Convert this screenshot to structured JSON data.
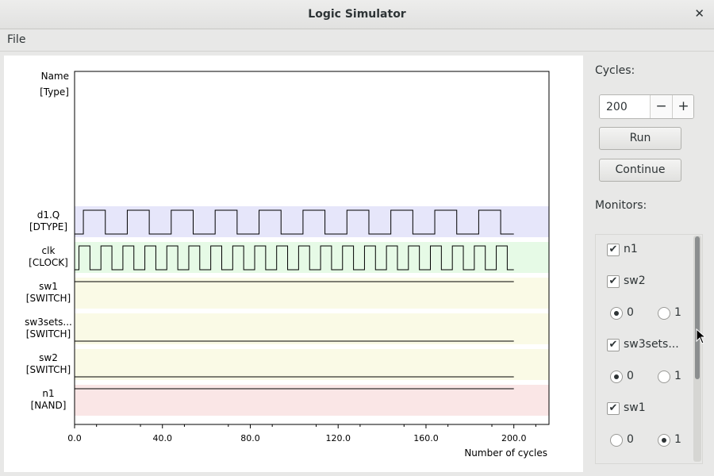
{
  "window": {
    "title": "Logic Simulator"
  },
  "menu": {
    "file_label": "File"
  },
  "sidebar": {
    "cycles_label": "Cycles:",
    "cycles_value": "200",
    "run_label": "Run",
    "continue_label": "Continue",
    "monitors_label": "Monitors:",
    "monitors": [
      {
        "name": "n1",
        "checked": true
      },
      {
        "name": "sw2",
        "checked": true,
        "radio": {
          "zero": "0",
          "one": "1",
          "selected": "0"
        }
      },
      {
        "name": "sw3sets...",
        "checked": true,
        "radio": {
          "zero": "0",
          "one": "1",
          "selected": "0"
        }
      },
      {
        "name": "sw1",
        "checked": true,
        "radio": {
          "zero": "0",
          "one": "1",
          "selected": "1"
        }
      }
    ]
  },
  "chart_data": {
    "type": "line",
    "header": {
      "name": "Name",
      "type": "[Type]"
    },
    "xlabel": "Number of cycles",
    "xlim": [
      0,
      216
    ],
    "x_ticks": [
      "0.0",
      "40.0",
      "80.0",
      "120.0",
      "160.0",
      "200.0"
    ],
    "x_tick_values": [
      0,
      40,
      80,
      120,
      160,
      200
    ],
    "signals": [
      {
        "name": "d1.Q",
        "type": "[DTYPE]",
        "color": "#e6e6fa",
        "kind": "toggle",
        "period_cycles": 20,
        "first_rise": 4,
        "end": 200
      },
      {
        "name": "clk",
        "type": "[CLOCK]",
        "color": "#e6fae6",
        "kind": "toggle",
        "period_cycles": 10,
        "first_rise": 2,
        "end": 200
      },
      {
        "name": "sw1",
        "type": "[SWITCH]",
        "color": "#fafae6",
        "kind": "const",
        "level": 1,
        "end": 200
      },
      {
        "name": "sw3sets...",
        "type": "[SWITCH]",
        "color": "#fafae6",
        "kind": "const",
        "level": 0,
        "end": 200
      },
      {
        "name": "sw2",
        "type": "[SWITCH]",
        "color": "#fafae6",
        "kind": "const",
        "level": 0,
        "end": 200
      },
      {
        "name": "n1",
        "type": "[NAND]",
        "color": "#fae6e6",
        "kind": "const",
        "level": 1,
        "end": 200
      }
    ]
  }
}
